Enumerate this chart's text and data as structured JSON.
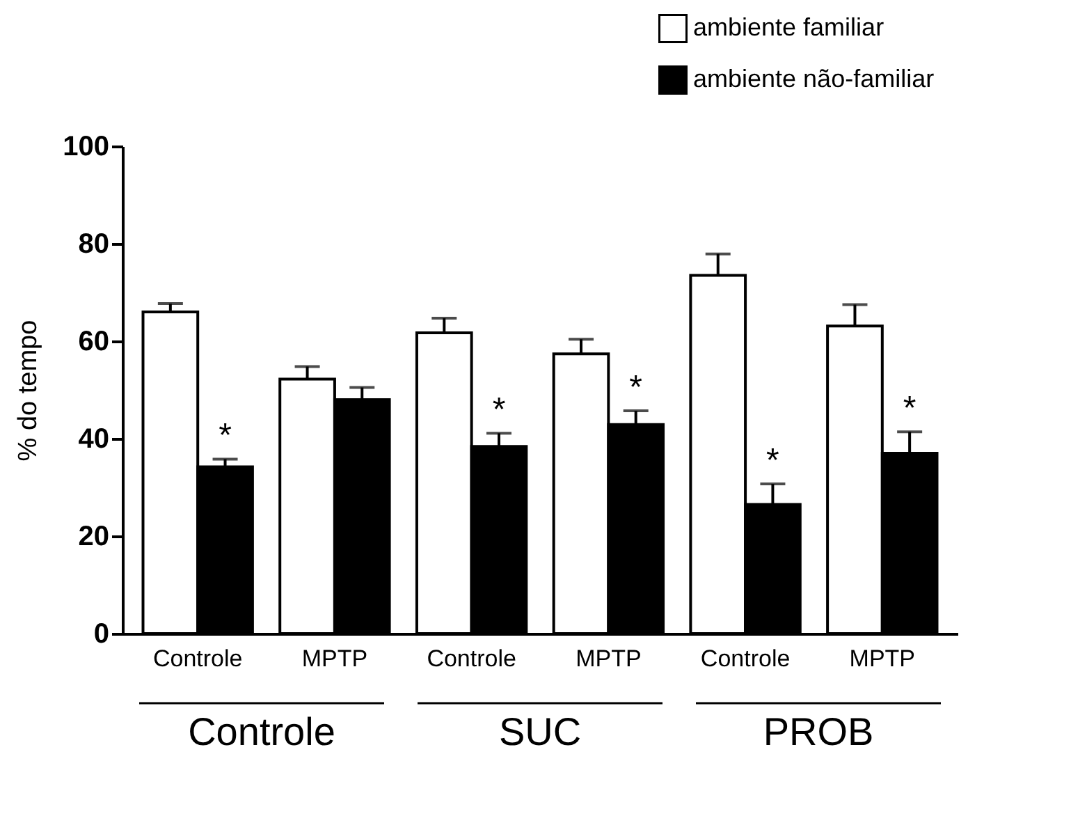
{
  "chart_data": {
    "type": "bar",
    "ylabel": "% do tempo",
    "categories": [
      "Controle",
      "MPTP",
      "Controle",
      "MPTP",
      "Controle",
      "MPTP"
    ],
    "series": [
      {
        "name": "ambiente familiar",
        "color": "#ffffff",
        "values": [
          66.0,
          52.2,
          61.7,
          57.4,
          73.5,
          63.1
        ],
        "errors": [
          [
            66.0,
            67.7
          ],
          [
            52.2,
            54.8
          ],
          [
            61.7,
            64.7
          ],
          [
            57.4,
            60.4
          ],
          [
            73.5,
            77.9
          ],
          [
            63.1,
            67.5
          ]
        ]
      },
      {
        "name": "ambiente não-familiar",
        "color": "#000000",
        "values": [
          34.2,
          48.0,
          38.4,
          42.9,
          26.5,
          37.0
        ],
        "errors": [
          [
            34.2,
            35.8
          ],
          [
            48.0,
            50.5
          ],
          [
            38.4,
            41.1
          ],
          [
            42.9,
            45.7
          ],
          [
            26.5,
            30.7
          ],
          [
            37.0,
            41.4
          ]
        ],
        "value_labels": [
          "*",
          null,
          "*",
          "*",
          "*",
          "*"
        ]
      }
    ],
    "annotations": [
      "Controle",
      "SUC",
      "PROB"
    ],
    "ylim": [
      0,
      100
    ],
    "yticks": [
      0,
      20,
      40,
      60,
      80,
      100
    ],
    "grid": false,
    "legend": "top right"
  }
}
